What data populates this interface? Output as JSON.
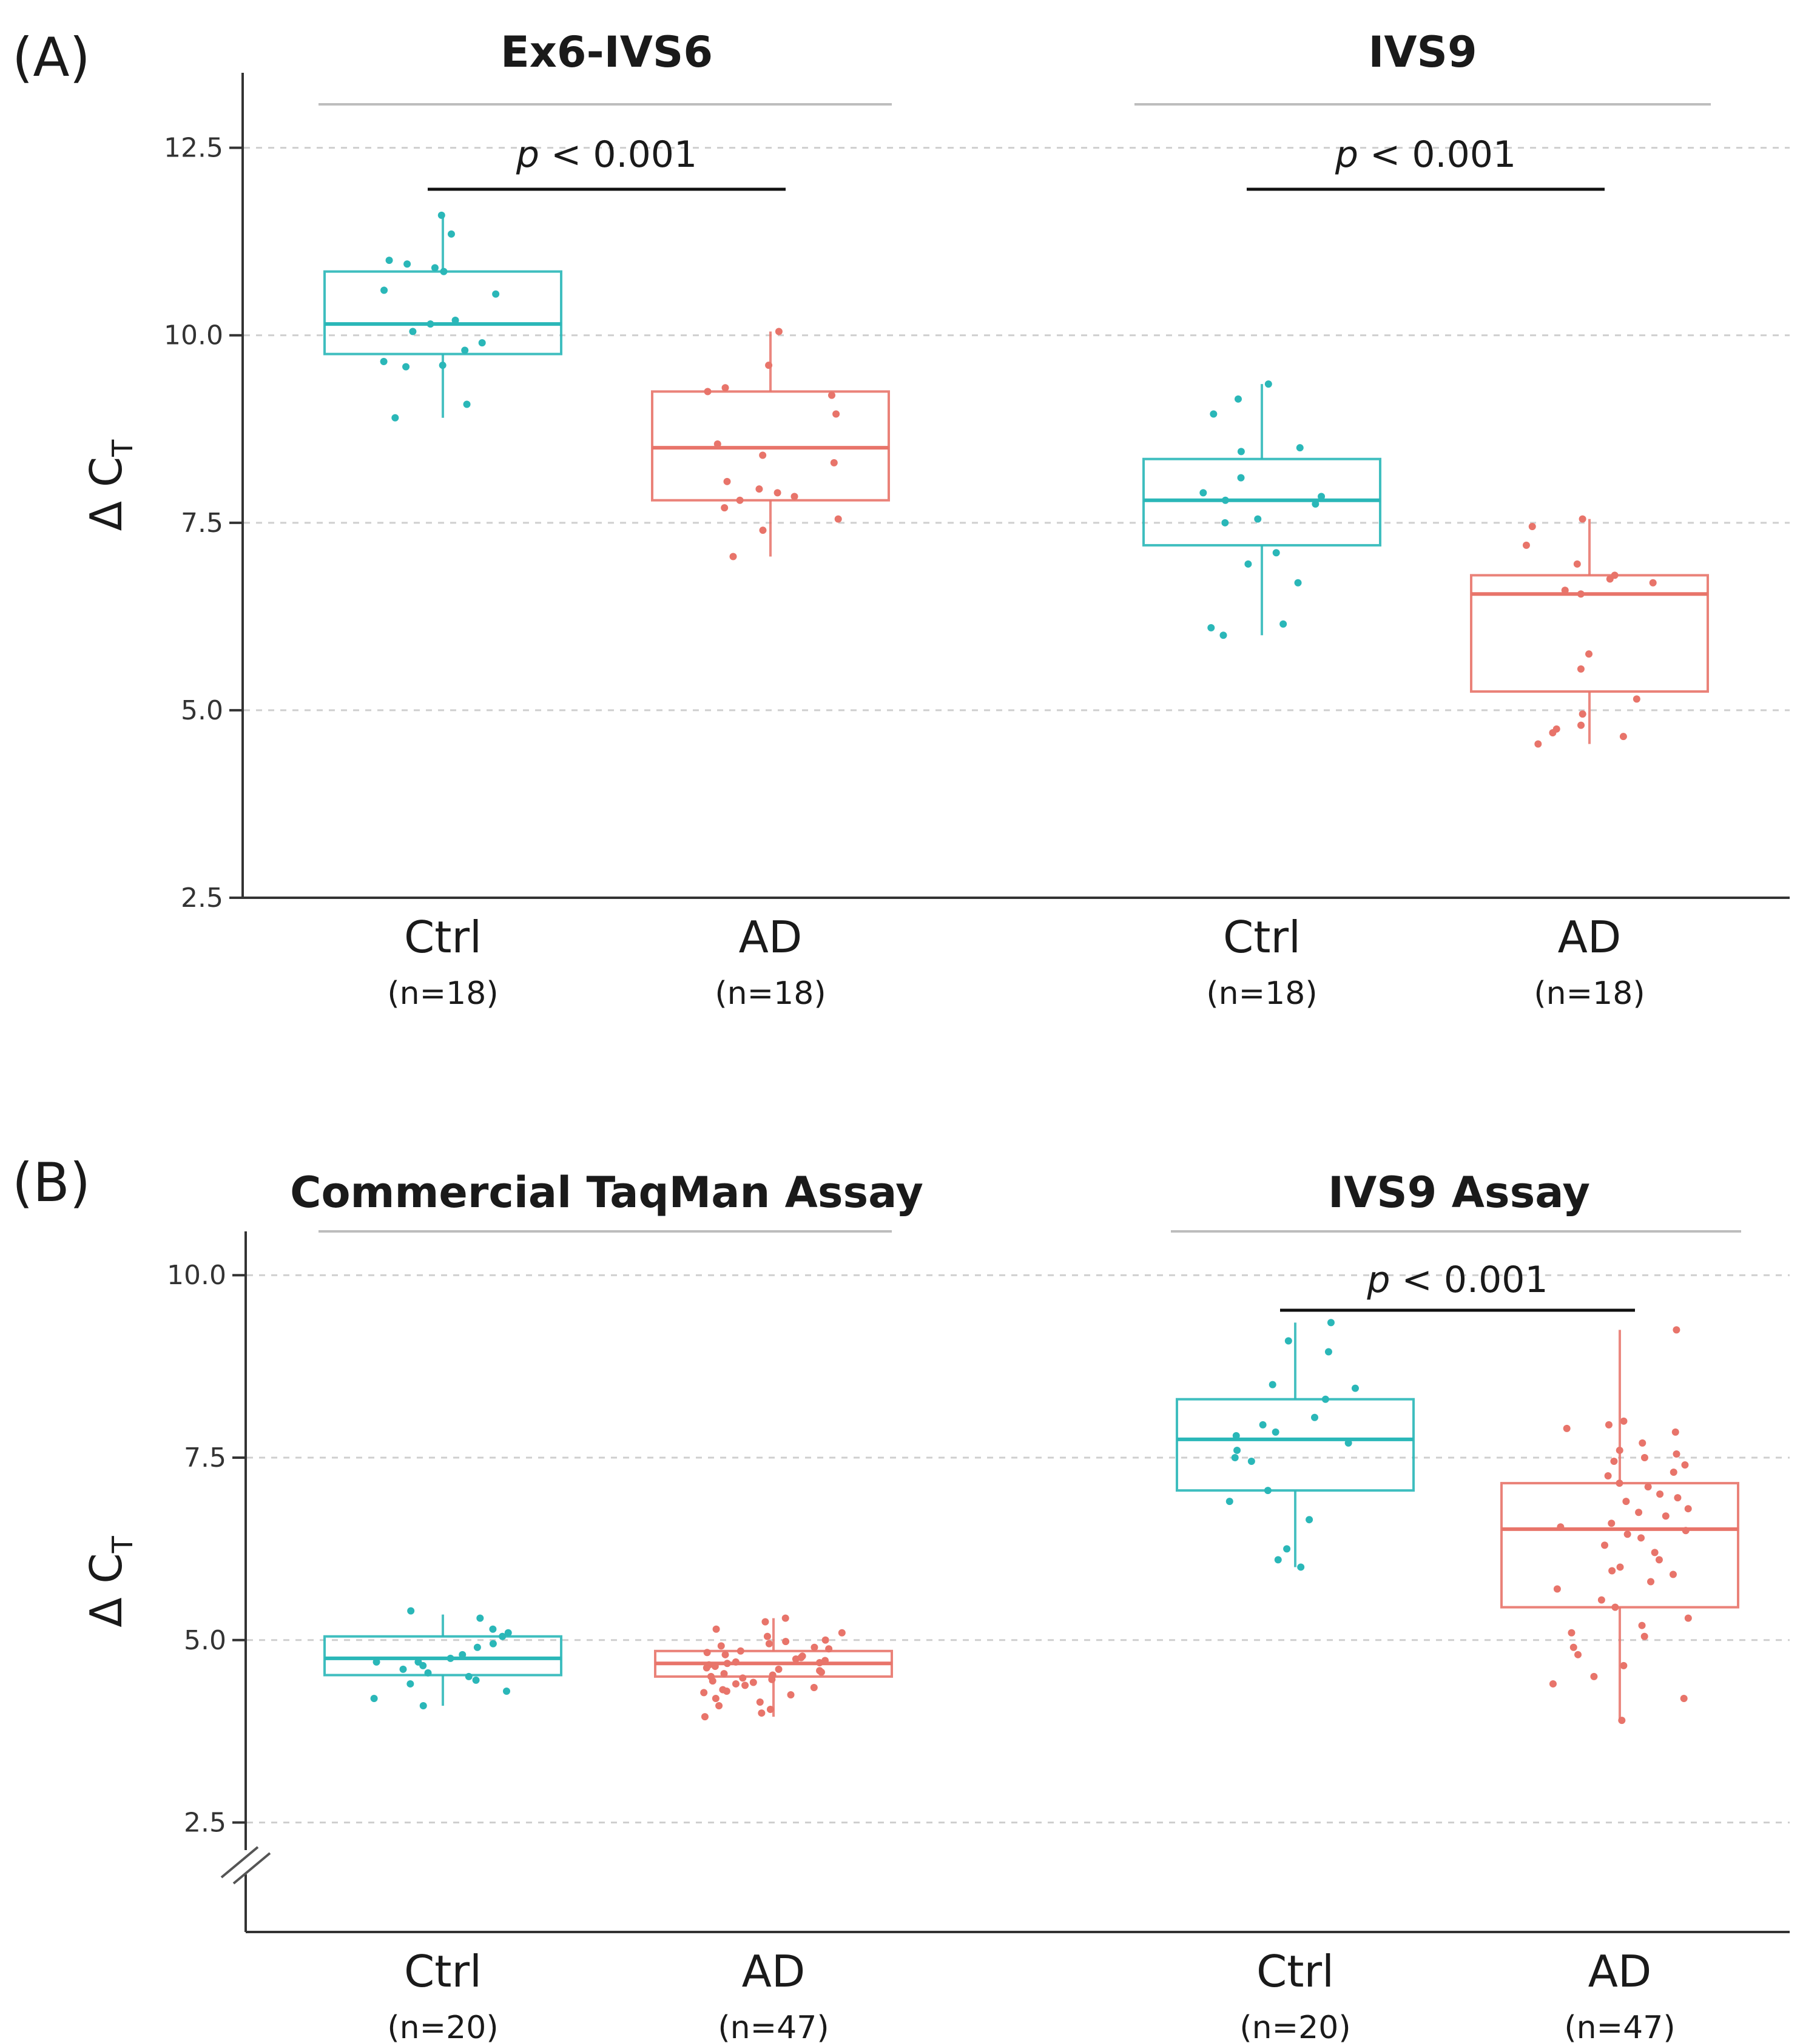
{
  "chart_data": [
    {
      "type": "box",
      "panel_label": "(A)",
      "ylabel": "Δ C",
      "ylabel_subscript": "T",
      "ylim": [
        2.5,
        13.5
      ],
      "yticks": [
        "2.5",
        "5.0",
        "7.5",
        "10.0",
        "12.5"
      ],
      "ytick_values": [
        2.5,
        5.0,
        7.5,
        10.0,
        12.5
      ],
      "grid": "horizontal dashed",
      "facets": [
        {
          "title": "Ex6-IVS6",
          "p_label_italic": "p",
          "p_label_rest": " < 0.001",
          "groups": [
            {
              "label": "Ctrl",
              "n_label": "(n=18)",
              "color": "#2ab7b8",
              "stats": {
                "min": 8.9,
                "q1": 9.75,
                "median": 10.15,
                "q3": 10.85,
                "max": 11.6
              },
              "points": [
                11.6,
                11.35,
                11.0,
                10.95,
                10.9,
                10.85,
                10.6,
                10.55,
                10.2,
                10.15,
                10.05,
                9.9,
                9.8,
                9.65,
                9.6,
                9.58,
                9.08,
                8.9
              ]
            },
            {
              "label": "AD",
              "n_label": "(n=18)",
              "color": "#e8746a",
              "stats": {
                "min": 7.05,
                "q1": 7.8,
                "median": 8.5,
                "q3": 9.25,
                "max": 10.05
              },
              "points": [
                10.05,
                9.6,
                9.3,
                9.25,
                9.2,
                8.95,
                8.55,
                8.4,
                8.3,
                8.05,
                7.95,
                7.9,
                7.85,
                7.8,
                7.7,
                7.55,
                7.4,
                7.05
              ]
            }
          ]
        },
        {
          "title": "IVS9",
          "p_label_italic": "p",
          "p_label_rest": " < 0.001",
          "groups": [
            {
              "label": "Ctrl",
              "n_label": "(n=18)",
              "color": "#2ab7b8",
              "stats": {
                "min": 6.0,
                "q1": 7.2,
                "median": 7.8,
                "q3": 8.35,
                "max": 9.35
              },
              "points": [
                9.35,
                9.15,
                8.95,
                8.5,
                8.45,
                8.1,
                7.9,
                7.85,
                7.8,
                7.75,
                7.55,
                7.5,
                7.1,
                6.95,
                6.7,
                6.15,
                6.1,
                6.0
              ]
            },
            {
              "label": "AD",
              "n_label": "(n=18)",
              "color": "#e8746a",
              "stats": {
                "min": 4.55,
                "q1": 5.25,
                "median": 6.55,
                "q3": 6.8,
                "max": 7.55
              },
              "points": [
                7.55,
                7.45,
                7.2,
                6.95,
                6.8,
                6.75,
                6.7,
                6.6,
                6.55,
                5.75,
                5.55,
                5.15,
                4.95,
                4.8,
                4.75,
                4.7,
                4.65,
                4.55
              ]
            }
          ]
        }
      ]
    },
    {
      "type": "box",
      "panel_label": "(B)",
      "ylabel": "Δ C",
      "ylabel_subscript": "T",
      "ylim": [
        1.0,
        10.6
      ],
      "yticks": [
        "2.5",
        "5.0",
        "7.5",
        "10.0"
      ],
      "ytick_values": [
        2.5,
        5.0,
        7.5,
        10.0
      ],
      "grid": "horizontal dashed",
      "axis_break": true,
      "facets": [
        {
          "title": "Commercial TaqMan Assay",
          "groups": [
            {
              "label": "Ctrl",
              "n_label": "(n=20)",
              "color": "#2ab7b8",
              "stats": {
                "min": 4.1,
                "q1": 4.52,
                "median": 4.75,
                "q3": 5.05,
                "max": 5.35
              },
              "points": [
                5.4,
                5.3,
                5.15,
                5.1,
                5.05,
                4.95,
                4.9,
                4.8,
                4.75,
                4.7,
                4.7,
                4.65,
                4.6,
                4.55,
                4.5,
                4.45,
                4.4,
                4.3,
                4.2,
                4.1
              ]
            },
            {
              "label": "AD",
              "n_label": "(n=47)",
              "color": "#e8746a",
              "stats": {
                "min": 3.95,
                "q1": 4.5,
                "median": 4.68,
                "q3": 4.85,
                "max": 5.3
              },
              "points": [
                5.3,
                5.25,
                5.15,
                5.1,
                5.05,
                5.0,
                4.98,
                4.95,
                4.92,
                4.9,
                4.88,
                4.85,
                4.83,
                4.8,
                4.78,
                4.76,
                4.74,
                4.72,
                4.7,
                4.69,
                4.68,
                4.66,
                4.64,
                4.62,
                4.6,
                4.58,
                4.56,
                4.54,
                4.52,
                4.5,
                4.48,
                4.46,
                4.44,
                4.42,
                4.4,
                4.38,
                4.35,
                4.32,
                4.3,
                4.28,
                4.25,
                4.2,
                4.15,
                4.1,
                4.05,
                4.0,
                3.95
              ]
            }
          ]
        },
        {
          "title": "IVS9 Assay",
          "p_label_italic": "p",
          "p_label_rest": " < 0.001",
          "groups": [
            {
              "label": "Ctrl",
              "n_label": "(n=20)",
              "color": "#2ab7b8",
              "stats": {
                "min": 6.0,
                "q1": 7.05,
                "median": 7.75,
                "q3": 8.3,
                "max": 9.35
              },
              "points": [
                9.35,
                9.1,
                8.95,
                8.5,
                8.45,
                8.3,
                8.05,
                7.95,
                7.85,
                7.8,
                7.7,
                7.6,
                7.5,
                7.45,
                7.05,
                6.9,
                6.65,
                6.25,
                6.1,
                6.0
              ]
            },
            {
              "label": "AD",
              "n_label": "(n=47)",
              "color": "#e8746a",
              "stats": {
                "min": 3.9,
                "q1": 5.45,
                "median": 6.52,
                "q3": 7.15,
                "max": 9.25
              },
              "points": [
                9.25,
                8.0,
                7.95,
                7.9,
                7.85,
                7.7,
                7.6,
                7.55,
                7.5,
                7.45,
                7.4,
                7.3,
                7.25,
                7.15,
                7.1,
                7.0,
                6.95,
                6.9,
                6.8,
                6.75,
                6.7,
                6.6,
                6.55,
                6.5,
                6.45,
                6.4,
                6.3,
                6.2,
                6.1,
                6.0,
                5.95,
                5.9,
                5.8,
                5.7,
                5.55,
                5.45,
                5.3,
                5.2,
                5.1,
                5.05,
                4.9,
                4.8,
                4.65,
                4.5,
                4.4,
                4.2,
                3.9
              ]
            }
          ]
        }
      ]
    }
  ]
}
